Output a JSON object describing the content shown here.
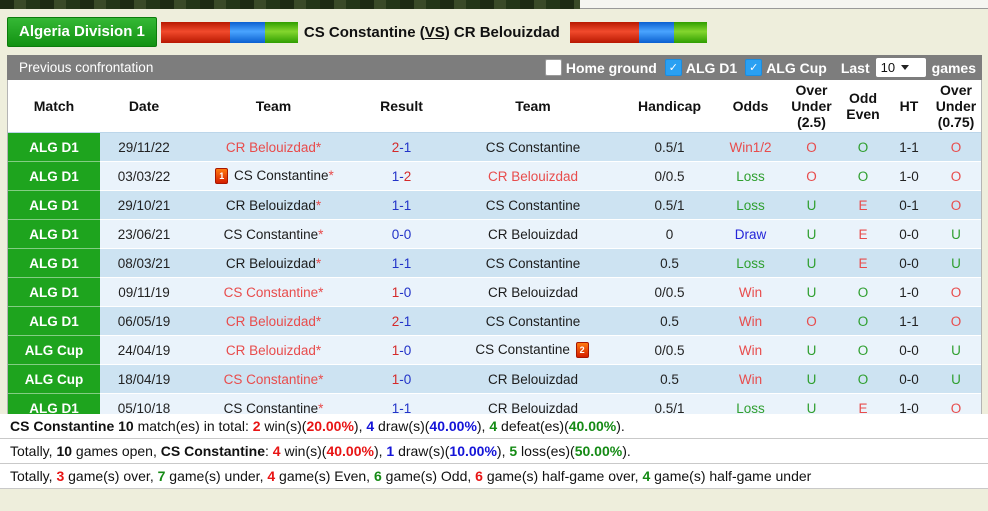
{
  "header": {
    "league_badge": "Algeria Division 1",
    "title": {
      "pre": "CS Constantine (",
      "vs": "VS",
      "post": ") CR Belouizdad"
    }
  },
  "toolbar": {
    "title": "Previous confrontation",
    "filters": [
      {
        "label": "Home ground",
        "checked": false
      },
      {
        "label": "ALG D1",
        "checked": true
      },
      {
        "label": "ALG Cup",
        "checked": true
      }
    ],
    "last_label": "Last",
    "games_count": "10",
    "games_label": "games"
  },
  "table": {
    "columns": [
      "Match",
      "Date",
      "Team",
      "Result",
      "Team",
      "Handicap",
      "Odds",
      "Over Under (2.5)",
      "Odd Even",
      "HT",
      "Over Under (0.75)"
    ],
    "rows": [
      {
        "match": "ALG D1",
        "date": "29/11/22",
        "home": {
          "name": "CR Belouizdad",
          "color": "red",
          "star": true,
          "card": null
        },
        "result": {
          "h": "2",
          "a": "1",
          "hc": "scorered",
          "ac": "navy"
        },
        "away": {
          "name": "CS Constantine",
          "color": "black",
          "star": false,
          "card": null
        },
        "handicap": "0.5/1",
        "odds": {
          "text": "Win1/2",
          "color": "red"
        },
        "ou25": {
          "text": "O",
          "color": "red"
        },
        "oddeven": {
          "text": "O",
          "color": "green"
        },
        "ht": "1-1",
        "ou075": {
          "text": "O",
          "color": "red"
        }
      },
      {
        "match": "ALG D1",
        "date": "03/03/22",
        "home": {
          "name": "CS Constantine",
          "color": "black",
          "star": true,
          "card": {
            "n": "1",
            "pos": "before"
          }
        },
        "result": {
          "h": "1",
          "a": "2",
          "hc": "navy",
          "ac": "scorered"
        },
        "away": {
          "name": "CR Belouizdad",
          "color": "red",
          "star": false,
          "card": null
        },
        "handicap": "0/0.5",
        "odds": {
          "text": "Loss",
          "color": "green"
        },
        "ou25": {
          "text": "O",
          "color": "red"
        },
        "oddeven": {
          "text": "O",
          "color": "green"
        },
        "ht": "1-0",
        "ou075": {
          "text": "O",
          "color": "red"
        }
      },
      {
        "match": "ALG D1",
        "date": "29/10/21",
        "home": {
          "name": "CR Belouizdad",
          "color": "black",
          "star": true,
          "card": null
        },
        "result": {
          "h": "1",
          "a": "1",
          "hc": "navy",
          "ac": "navy"
        },
        "away": {
          "name": "CS Constantine",
          "color": "black",
          "star": false,
          "card": null
        },
        "handicap": "0.5/1",
        "odds": {
          "text": "Loss",
          "color": "green"
        },
        "ou25": {
          "text": "U",
          "color": "green"
        },
        "oddeven": {
          "text": "E",
          "color": "red"
        },
        "ht": "0-1",
        "ou075": {
          "text": "O",
          "color": "red"
        }
      },
      {
        "match": "ALG D1",
        "date": "23/06/21",
        "home": {
          "name": "CS Constantine",
          "color": "black",
          "star": true,
          "card": null
        },
        "result": {
          "h": "0",
          "a": "0",
          "hc": "navy",
          "ac": "navy"
        },
        "away": {
          "name": "CR Belouizdad",
          "color": "black",
          "star": false,
          "card": null
        },
        "handicap": "0",
        "odds": {
          "text": "Draw",
          "color": "blue"
        },
        "ou25": {
          "text": "U",
          "color": "green"
        },
        "oddeven": {
          "text": "E",
          "color": "red"
        },
        "ht": "0-0",
        "ou075": {
          "text": "U",
          "color": "green"
        }
      },
      {
        "match": "ALG D1",
        "date": "08/03/21",
        "home": {
          "name": "CR Belouizdad",
          "color": "black",
          "star": true,
          "card": null
        },
        "result": {
          "h": "1",
          "a": "1",
          "hc": "navy",
          "ac": "navy"
        },
        "away": {
          "name": "CS Constantine",
          "color": "black",
          "star": false,
          "card": null
        },
        "handicap": "0.5",
        "odds": {
          "text": "Loss",
          "color": "green"
        },
        "ou25": {
          "text": "U",
          "color": "green"
        },
        "oddeven": {
          "text": "E",
          "color": "red"
        },
        "ht": "0-0",
        "ou075": {
          "text": "U",
          "color": "green"
        }
      },
      {
        "match": "ALG D1",
        "date": "09/11/19",
        "home": {
          "name": "CS Constantine",
          "color": "red",
          "star": true,
          "card": null
        },
        "result": {
          "h": "1",
          "a": "0",
          "hc": "scorered",
          "ac": "navy"
        },
        "away": {
          "name": "CR Belouizdad",
          "color": "black",
          "star": false,
          "card": null
        },
        "handicap": "0/0.5",
        "odds": {
          "text": "Win",
          "color": "red"
        },
        "ou25": {
          "text": "U",
          "color": "green"
        },
        "oddeven": {
          "text": "O",
          "color": "green"
        },
        "ht": "1-0",
        "ou075": {
          "text": "O",
          "color": "red"
        }
      },
      {
        "match": "ALG D1",
        "date": "06/05/19",
        "home": {
          "name": "CR Belouizdad",
          "color": "red",
          "star": true,
          "card": null
        },
        "result": {
          "h": "2",
          "a": "1",
          "hc": "scorered",
          "ac": "navy"
        },
        "away": {
          "name": "CS Constantine",
          "color": "black",
          "star": false,
          "card": null
        },
        "handicap": "0.5",
        "odds": {
          "text": "Win",
          "color": "red"
        },
        "ou25": {
          "text": "O",
          "color": "red"
        },
        "oddeven": {
          "text": "O",
          "color": "green"
        },
        "ht": "1-1",
        "ou075": {
          "text": "O",
          "color": "red"
        }
      },
      {
        "match": "ALG Cup",
        "date": "24/04/19",
        "home": {
          "name": "CR Belouizdad",
          "color": "red",
          "star": true,
          "card": null
        },
        "result": {
          "h": "1",
          "a": "0",
          "hc": "scorered",
          "ac": "navy"
        },
        "away": {
          "name": "CS Constantine",
          "color": "black",
          "star": false,
          "card": {
            "n": "2",
            "pos": "after"
          }
        },
        "handicap": "0/0.5",
        "odds": {
          "text": "Win",
          "color": "red"
        },
        "ou25": {
          "text": "U",
          "color": "green"
        },
        "oddeven": {
          "text": "O",
          "color": "green"
        },
        "ht": "0-0",
        "ou075": {
          "text": "U",
          "color": "green"
        }
      },
      {
        "match": "ALG Cup",
        "date": "18/04/19",
        "home": {
          "name": "CS Constantine",
          "color": "red",
          "star": true,
          "card": null
        },
        "result": {
          "h": "1",
          "a": "0",
          "hc": "scorered",
          "ac": "navy"
        },
        "away": {
          "name": "CR Belouizdad",
          "color": "black",
          "star": false,
          "card": null
        },
        "handicap": "0.5",
        "odds": {
          "text": "Win",
          "color": "red"
        },
        "ou25": {
          "text": "U",
          "color": "green"
        },
        "oddeven": {
          "text": "O",
          "color": "green"
        },
        "ht": "0-0",
        "ou075": {
          "text": "U",
          "color": "green"
        }
      },
      {
        "match": "ALG D1",
        "date": "05/10/18",
        "home": {
          "name": "CS Constantine",
          "color": "black",
          "star": true,
          "card": null
        },
        "result": {
          "h": "1",
          "a": "1",
          "hc": "navy",
          "ac": "navy"
        },
        "away": {
          "name": "CR Belouizdad",
          "color": "black",
          "star": false,
          "card": null
        },
        "handicap": "0.5/1",
        "odds": {
          "text": "Loss",
          "color": "green"
        },
        "ou25": {
          "text": "U",
          "color": "green"
        },
        "oddeven": {
          "text": "E",
          "color": "red"
        },
        "ht": "1-0",
        "ou075": {
          "text": "O",
          "color": "red"
        }
      }
    ]
  },
  "summary": {
    "lines": [
      [
        {
          "t": "CS Constantine 10",
          "b": 1
        },
        {
          "t": " match(es) in total: "
        },
        {
          "t": "2",
          "c": "red",
          "b": 1
        },
        {
          "t": " win(s)("
        },
        {
          "t": "20.00%",
          "c": "red",
          "b": 1
        },
        {
          "t": "), "
        },
        {
          "t": "4",
          "c": "blue",
          "b": 1
        },
        {
          "t": " draw(s)("
        },
        {
          "t": "40.00%",
          "c": "blue",
          "b": 1
        },
        {
          "t": "), "
        },
        {
          "t": "4",
          "c": "green",
          "b": 1
        },
        {
          "t": " defeat(es)("
        },
        {
          "t": "40.00%",
          "c": "green",
          "b": 1
        },
        {
          "t": ")."
        }
      ],
      [
        {
          "t": "Totally, "
        },
        {
          "t": "10",
          "b": 1
        },
        {
          "t": " games open, "
        },
        {
          "t": "CS Constantine",
          "b": 1
        },
        {
          "t": ": "
        },
        {
          "t": "4",
          "c": "red",
          "b": 1
        },
        {
          "t": " win(s)("
        },
        {
          "t": "40.00%",
          "c": "red",
          "b": 1
        },
        {
          "t": "), "
        },
        {
          "t": "1",
          "c": "blue",
          "b": 1
        },
        {
          "t": " draw(s)("
        },
        {
          "t": "10.00%",
          "c": "blue",
          "b": 1
        },
        {
          "t": "), "
        },
        {
          "t": "5",
          "c": "green",
          "b": 1
        },
        {
          "t": " loss(es)("
        },
        {
          "t": "50.00%",
          "c": "green",
          "b": 1
        },
        {
          "t": ")."
        }
      ],
      [
        {
          "t": "Totally, "
        },
        {
          "t": "3",
          "c": "red",
          "b": 1
        },
        {
          "t": " game(s) over, "
        },
        {
          "t": "7",
          "c": "green",
          "b": 1
        },
        {
          "t": " game(s) under, "
        },
        {
          "t": "4",
          "c": "red",
          "b": 1
        },
        {
          "t": " game(s) Even, "
        },
        {
          "t": "6",
          "c": "green",
          "b": 1
        },
        {
          "t": " game(s) Odd, "
        },
        {
          "t": "6",
          "c": "red",
          "b": 1
        },
        {
          "t": " game(s) half-game over, "
        },
        {
          "t": "4",
          "c": "green",
          "b": 1
        },
        {
          "t": " game(s) half-game under"
        }
      ]
    ]
  },
  "colors": {
    "page_background": "#eeeedc",
    "badge_green": "#1ea41e",
    "toolbar_gray": "#7d7d7d",
    "row_blue_dark": "#cde3f2",
    "row_blue_light": "#eaf3fb",
    "win_red": "#e84c4c",
    "loss_green": "#2f9f2f",
    "draw_blue": "#2424d8",
    "checkbox_blue": "#2aa0f2",
    "flag_colors": [
      "#d42800",
      "#1c7ae8",
      "#4db414"
    ]
  }
}
